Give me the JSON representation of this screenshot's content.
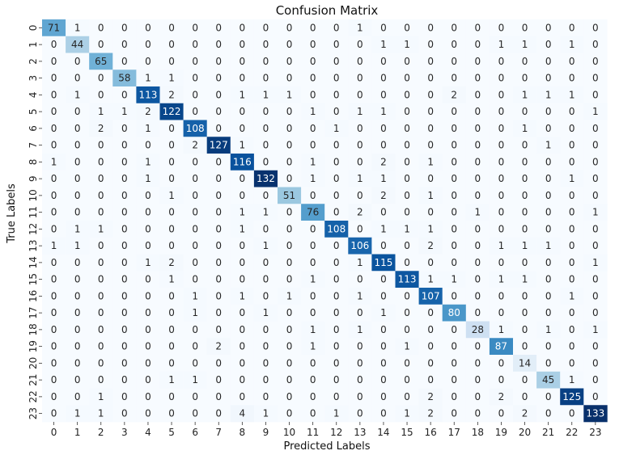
{
  "chart_data": {
    "type": "heatmap",
    "title": "Confusion Matrix",
    "xlabel": "Predicted Labels",
    "ylabel": "True Labels",
    "x_ticks": [
      "0",
      "1",
      "2",
      "3",
      "4",
      "5",
      "6",
      "7",
      "8",
      "9",
      "10",
      "11",
      "12",
      "13",
      "14",
      "15",
      "16",
      "17",
      "18",
      "19",
      "20",
      "21",
      "22",
      "23"
    ],
    "y_ticks": [
      "0",
      "1",
      "2",
      "3",
      "4",
      "5",
      "6",
      "7",
      "8",
      "9",
      "10",
      "11",
      "12",
      "13",
      "14",
      "15",
      "16",
      "17",
      "18",
      "19",
      "20",
      "21",
      "22",
      "23"
    ],
    "colormap": "Blues",
    "color_range": [
      0,
      133
    ],
    "matrix": [
      [
        71,
        1,
        0,
        0,
        0,
        0,
        0,
        0,
        0,
        0,
        0,
        0,
        0,
        1,
        0,
        0,
        0,
        0,
        0,
        0,
        0,
        0,
        0,
        0
      ],
      [
        0,
        44,
        0,
        0,
        0,
        0,
        0,
        0,
        0,
        0,
        0,
        0,
        0,
        0,
        1,
        1,
        0,
        0,
        0,
        1,
        1,
        0,
        1,
        0
      ],
      [
        0,
        0,
        65,
        0,
        0,
        0,
        0,
        0,
        0,
        0,
        0,
        0,
        0,
        0,
        0,
        0,
        0,
        0,
        0,
        0,
        0,
        0,
        0,
        0
      ],
      [
        0,
        0,
        0,
        58,
        1,
        1,
        0,
        0,
        0,
        0,
        0,
        0,
        0,
        0,
        0,
        0,
        0,
        0,
        0,
        0,
        0,
        0,
        0,
        0
      ],
      [
        0,
        1,
        0,
        0,
        113,
        2,
        0,
        0,
        1,
        1,
        1,
        0,
        0,
        0,
        0,
        0,
        0,
        2,
        0,
        0,
        1,
        1,
        1,
        0
      ],
      [
        0,
        0,
        1,
        1,
        2,
        122,
        0,
        0,
        0,
        0,
        0,
        1,
        0,
        1,
        1,
        0,
        0,
        0,
        0,
        0,
        0,
        0,
        0,
        1
      ],
      [
        0,
        0,
        2,
        0,
        1,
        0,
        108,
        0,
        0,
        0,
        0,
        0,
        1,
        0,
        0,
        0,
        0,
        0,
        0,
        0,
        1,
        0,
        0,
        0
      ],
      [
        0,
        0,
        0,
        0,
        0,
        0,
        2,
        127,
        1,
        0,
        0,
        0,
        0,
        0,
        0,
        0,
        0,
        0,
        0,
        0,
        0,
        1,
        0,
        0
      ],
      [
        1,
        0,
        0,
        0,
        1,
        0,
        0,
        0,
        116,
        0,
        0,
        1,
        0,
        0,
        2,
        0,
        1,
        0,
        0,
        0,
        0,
        0,
        0,
        0
      ],
      [
        0,
        0,
        0,
        0,
        1,
        0,
        0,
        0,
        0,
        132,
        0,
        1,
        0,
        1,
        1,
        0,
        0,
        0,
        0,
        0,
        0,
        0,
        1,
        0
      ],
      [
        0,
        0,
        0,
        0,
        0,
        1,
        0,
        0,
        0,
        0,
        51,
        0,
        0,
        0,
        2,
        0,
        1,
        0,
        0,
        0,
        0,
        0,
        0,
        0
      ],
      [
        0,
        0,
        0,
        0,
        0,
        0,
        0,
        0,
        1,
        1,
        0,
        76,
        0,
        2,
        0,
        0,
        0,
        0,
        1,
        0,
        0,
        0,
        0,
        1
      ],
      [
        0,
        1,
        1,
        0,
        0,
        0,
        0,
        0,
        1,
        0,
        0,
        0,
        108,
        0,
        1,
        1,
        1,
        0,
        0,
        0,
        0,
        0,
        0,
        0
      ],
      [
        1,
        1,
        0,
        0,
        0,
        0,
        0,
        0,
        0,
        1,
        0,
        0,
        0,
        106,
        0,
        0,
        2,
        0,
        0,
        1,
        1,
        1,
        0,
        0
      ],
      [
        0,
        0,
        0,
        0,
        1,
        2,
        0,
        0,
        0,
        0,
        0,
        0,
        0,
        1,
        115,
        0,
        0,
        0,
        0,
        0,
        0,
        0,
        0,
        1
      ],
      [
        0,
        0,
        0,
        0,
        0,
        1,
        0,
        0,
        0,
        0,
        0,
        1,
        0,
        0,
        0,
        113,
        1,
        1,
        0,
        1,
        1,
        0,
        0,
        0
      ],
      [
        0,
        0,
        0,
        0,
        0,
        0,
        1,
        0,
        1,
        0,
        1,
        0,
        0,
        1,
        0,
        0,
        107,
        0,
        0,
        0,
        0,
        0,
        1,
        0
      ],
      [
        0,
        0,
        0,
        0,
        0,
        0,
        1,
        0,
        0,
        1,
        0,
        0,
        0,
        0,
        1,
        0,
        0,
        80,
        0,
        0,
        0,
        0,
        0,
        0
      ],
      [
        0,
        0,
        0,
        0,
        0,
        0,
        0,
        0,
        0,
        0,
        0,
        1,
        0,
        1,
        0,
        0,
        0,
        0,
        28,
        1,
        0,
        1,
        0,
        1
      ],
      [
        0,
        0,
        0,
        0,
        0,
        0,
        0,
        2,
        0,
        0,
        0,
        1,
        0,
        0,
        0,
        1,
        0,
        0,
        0,
        87,
        0,
        0,
        0,
        0
      ],
      [
        0,
        0,
        0,
        0,
        0,
        0,
        0,
        0,
        0,
        0,
        0,
        0,
        0,
        0,
        0,
        0,
        0,
        0,
        0,
        0,
        14,
        0,
        0,
        0
      ],
      [
        0,
        0,
        0,
        0,
        0,
        1,
        1,
        0,
        0,
        0,
        0,
        0,
        0,
        0,
        0,
        0,
        0,
        0,
        0,
        0,
        0,
        45,
        1,
        0
      ],
      [
        0,
        0,
        1,
        0,
        0,
        0,
        0,
        0,
        0,
        0,
        0,
        0,
        0,
        0,
        0,
        0,
        2,
        0,
        0,
        2,
        0,
        0,
        125,
        0
      ],
      [
        0,
        1,
        1,
        0,
        0,
        0,
        0,
        0,
        4,
        1,
        0,
        0,
        1,
        0,
        0,
        1,
        2,
        0,
        0,
        0,
        2,
        0,
        0,
        133
      ]
    ]
  }
}
